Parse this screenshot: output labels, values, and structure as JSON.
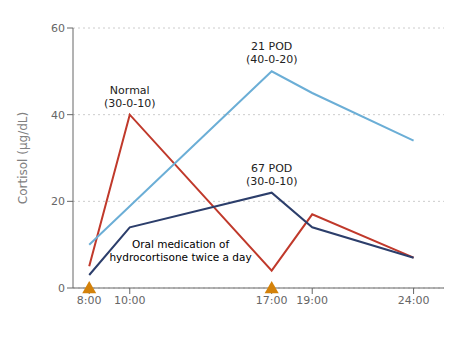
{
  "chart_data": {
    "type": "line",
    "ylabel": "Cortisol (μg/dL)",
    "xlim": [
      7.2,
      25.5
    ],
    "xticks": [
      {
        "value": 8,
        "label": "8:00"
      },
      {
        "value": 10,
        "label": "10:00"
      },
      {
        "value": 17,
        "label": "17:00"
      },
      {
        "value": 19,
        "label": "19:00"
      },
      {
        "value": 24,
        "label": "24:00"
      }
    ],
    "ylim": [
      0,
      60
    ],
    "yticks": [
      0,
      20,
      40,
      60
    ],
    "grid": true,
    "series": [
      {
        "name": "Normal\n(30-0-10)",
        "color": "#c0392b",
        "x": [
          8,
          10,
          17,
          19,
          24
        ],
        "values": [
          5,
          40,
          4,
          17,
          7
        ]
      },
      {
        "name": "21 POD\n(40-0-20)",
        "color": "#6baed6",
        "x": [
          8,
          17,
          19,
          24
        ],
        "values": [
          10,
          50,
          45,
          34
        ]
      },
      {
        "name": "67 POD\n(30-0-10)",
        "color": "#2c3e6b",
        "x": [
          8,
          10,
          17,
          19,
          24
        ],
        "values": [
          3,
          14,
          22,
          14,
          7
        ]
      }
    ],
    "dose_marks": {
      "x": [
        8,
        17
      ],
      "marker": "triangle",
      "color": "#d4820a"
    },
    "annotation": "Oral medication of\nhydrocortisone twice a day"
  }
}
